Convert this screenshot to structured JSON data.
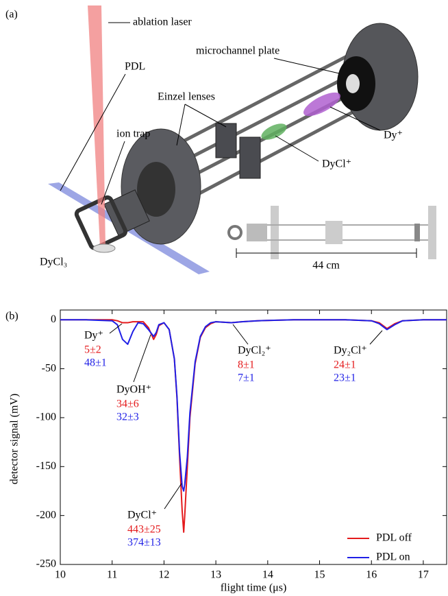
{
  "diagram": {
    "panel_label": "(a)",
    "labels": {
      "laser": "ablation laser",
      "pdl": "PDL",
      "mcp": "microchannel plate",
      "einzel": "Einzel lenses",
      "trap": "ion trap",
      "dy": "Dy⁺",
      "dycl": "DyCl⁺",
      "dycl3": "DyCl₃",
      "length": "44 cm"
    }
  },
  "chart_data": {
    "type": "line",
    "panel_label": "(b)",
    "xlabel": "flight time (μs)",
    "ylabel": "detector signal (mV)",
    "x": [
      10,
      10.5,
      11,
      11.1,
      11.2,
      11.3,
      11.4,
      11.5,
      11.6,
      11.7,
      11.8,
      11.85,
      11.9,
      12.0,
      12.1,
      12.2,
      12.25,
      12.3,
      12.35,
      12.38,
      12.4,
      12.45,
      12.5,
      12.6,
      12.7,
      12.8,
      12.9,
      13.0,
      13.3,
      13.5,
      13.8,
      14.5,
      15.5,
      16.0,
      16.15,
      16.3,
      16.45,
      16.6,
      17,
      17.45
    ],
    "series": [
      {
        "name": "PDL off",
        "color": "#e41a1c",
        "values": [
          0,
          0,
          0,
          -1,
          -3,
          -3,
          -2,
          -2,
          -2,
          -8,
          -20,
          -15,
          -6,
          -3,
          -10,
          -40,
          -80,
          -140,
          -195,
          -217,
          -200,
          -150,
          -100,
          -45,
          -18,
          -8,
          -4,
          -2,
          -3,
          -2,
          -1,
          0,
          0,
          -1,
          -3,
          -9,
          -4,
          -1,
          0,
          0
        ]
      },
      {
        "name": "PDL on",
        "color": "#1f1fe6",
        "values": [
          0,
          0,
          -1,
          -5,
          -20,
          -25,
          -12,
          -3,
          -4,
          -10,
          -17,
          -13,
          -5,
          -3,
          -10,
          -40,
          -78,
          -135,
          -170,
          -175,
          -168,
          -140,
          -95,
          -43,
          -17,
          -7,
          -3,
          -2,
          -3,
          -2,
          -1,
          0,
          0,
          -1,
          -4,
          -10,
          -5,
          -1,
          0,
          0
        ]
      }
    ],
    "xlim": [
      10,
      17.45
    ],
    "xticks": [
      10,
      11,
      12,
      13,
      14,
      15,
      16,
      17
    ],
    "ylim": [
      -250,
      10
    ],
    "yticks": [
      0,
      -50,
      -100,
      -150,
      -200,
      -250
    ],
    "grid": false,
    "legend": "lower right",
    "annotations": [
      {
        "label": "Dy⁺",
        "values": [
          "5±2",
          "48±1"
        ]
      },
      {
        "label": "DyOH⁺",
        "values": [
          "34±6",
          "32±3"
        ]
      },
      {
        "label": "DyCl⁺",
        "values": [
          "443±25",
          "374±13"
        ]
      },
      {
        "label": "DyCl₂⁺",
        "values": [
          "8±1",
          "7±1"
        ]
      },
      {
        "label": "Dy₂Cl⁺",
        "values": [
          "24±1",
          "23±1"
        ]
      }
    ]
  }
}
